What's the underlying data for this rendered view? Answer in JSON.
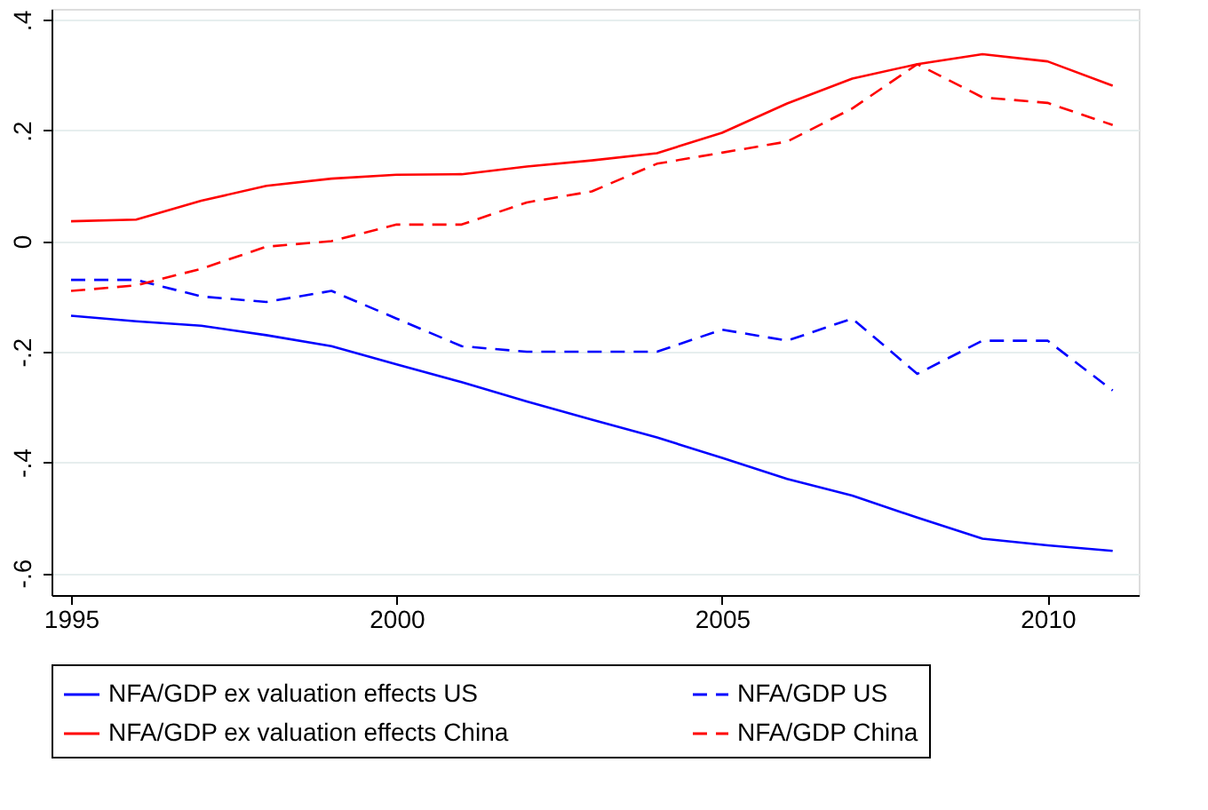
{
  "chart_data": {
    "type": "line",
    "x": [
      1995,
      1996,
      1997,
      1998,
      1999,
      2000,
      2001,
      2002,
      2003,
      2004,
      2005,
      2006,
      2007,
      2008,
      2009,
      2010,
      2011
    ],
    "series": [
      {
        "name": "NFA/GDP ex valuation effects US",
        "color": "#0000ff",
        "line_style": "solid",
        "values": [
          -0.135,
          -0.145,
          -0.153,
          -0.17,
          -0.19,
          -0.223,
          -0.255,
          -0.29,
          -0.323,
          -0.355,
          -0.392,
          -0.43,
          -0.46,
          -0.5,
          -0.538,
          -0.55,
          -0.56
        ]
      },
      {
        "name": "NFA/GDP US",
        "color": "#0000ff",
        "line_style": "dashed",
        "values": [
          -0.07,
          -0.07,
          -0.1,
          -0.11,
          -0.09,
          -0.14,
          -0.19,
          -0.2,
          -0.2,
          -0.2,
          -0.16,
          -0.18,
          -0.14,
          -0.24,
          -0.18,
          -0.18,
          -0.27
        ]
      },
      {
        "name": "NFA/GDP ex valuation effects China",
        "color": "#ff0000",
        "line_style": "solid",
        "values": [
          0.036,
          0.039,
          0.073,
          0.1,
          0.113,
          0.12,
          0.121,
          0.135,
          0.146,
          0.159,
          0.196,
          0.249,
          0.294,
          0.32,
          0.338,
          0.325,
          0.281
        ]
      },
      {
        "name": "NFA/GDP China",
        "color": "#ff0000",
        "line_style": "dashed",
        "values": [
          -0.09,
          -0.08,
          -0.05,
          -0.01,
          0,
          0.03,
          0.03,
          0.07,
          0.09,
          0.14,
          0.16,
          0.18,
          0.24,
          0.32,
          0.26,
          0.25,
          0.21
        ]
      }
    ],
    "xlim": [
      1994.7,
      2011.4
    ],
    "xticks": [
      1995,
      2000,
      2005,
      2010
    ],
    "ylim": [
      -0.64,
      0.42
    ],
    "yticks": [
      {
        "value": -0.6,
        "label": "-.6"
      },
      {
        "value": -0.4,
        "label": "-.4"
      },
      {
        "value": -0.2,
        "label": "-.2"
      },
      0,
      {
        "value": 0.2,
        "label": ".2"
      },
      {
        "value": 0.4,
        "label": ".4"
      }
    ],
    "grid": "y",
    "legend": "bottom",
    "marker": "none"
  }
}
